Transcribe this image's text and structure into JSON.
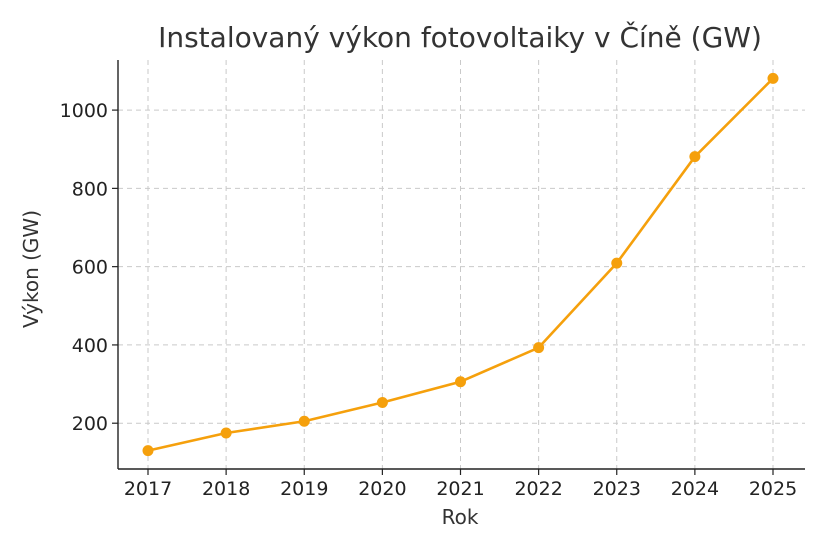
{
  "chart_data": {
    "type": "line",
    "title": "Instalovaný výkon fotovoltaiky v Číně (GW)",
    "xlabel": "Rok",
    "ylabel": "Výkon (GW)",
    "x": [
      "2017",
      "2018",
      "2019",
      "2020",
      "2021",
      "2022",
      "2023",
      "2024",
      "2025"
    ],
    "series": [
      {
        "values": [
          130,
          175,
          205,
          253,
          306,
          393,
          609,
          881,
          1081
        ]
      }
    ],
    "yticks": [
      200,
      400,
      600,
      800,
      1000
    ],
    "ylim": [
      83,
      1128
    ],
    "grid": true,
    "color": "#f5a00c"
  }
}
